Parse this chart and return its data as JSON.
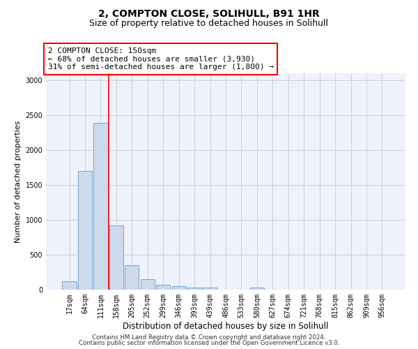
{
  "title": "2, COMPTON CLOSE, SOLIHULL, B91 1HR",
  "subtitle": "Size of property relative to detached houses in Solihull",
  "xlabel": "Distribution of detached houses by size in Solihull",
  "ylabel": "Number of detached properties",
  "footer1": "Contains HM Land Registry data © Crown copyright and database right 2024.",
  "footer2": "Contains public sector information licensed under the Open Government Licence v3.0.",
  "bar_labels": [
    "17sqm",
    "64sqm",
    "111sqm",
    "158sqm",
    "205sqm",
    "252sqm",
    "299sqm",
    "346sqm",
    "393sqm",
    "439sqm",
    "486sqm",
    "533sqm",
    "580sqm",
    "627sqm",
    "674sqm",
    "721sqm",
    "768sqm",
    "815sqm",
    "862sqm",
    "909sqm",
    "956sqm"
  ],
  "bar_values": [
    120,
    1700,
    2390,
    920,
    350,
    155,
    75,
    55,
    30,
    30,
    0,
    0,
    30,
    0,
    0,
    0,
    0,
    0,
    0,
    0,
    0
  ],
  "bar_color": "#cddaeb",
  "bar_edge_color": "#6699cc",
  "grid_color": "#ccccdd",
  "vline_color": "red",
  "vline_position": 2.5,
  "annotation_text": "2 COMPTON CLOSE: 150sqm\n← 68% of detached houses are smaller (3,930)\n31% of semi-detached houses are larger (1,800) →",
  "ylim": [
    0,
    3100
  ],
  "yticks": [
    0,
    500,
    1000,
    1500,
    2000,
    2500,
    3000
  ],
  "background_color": "#eef2fb",
  "title_fontsize": 10,
  "subtitle_fontsize": 9,
  "axis_label_fontsize": 8.5,
  "ylabel_fontsize": 8,
  "tick_fontsize": 7,
  "ann_fontsize": 8
}
